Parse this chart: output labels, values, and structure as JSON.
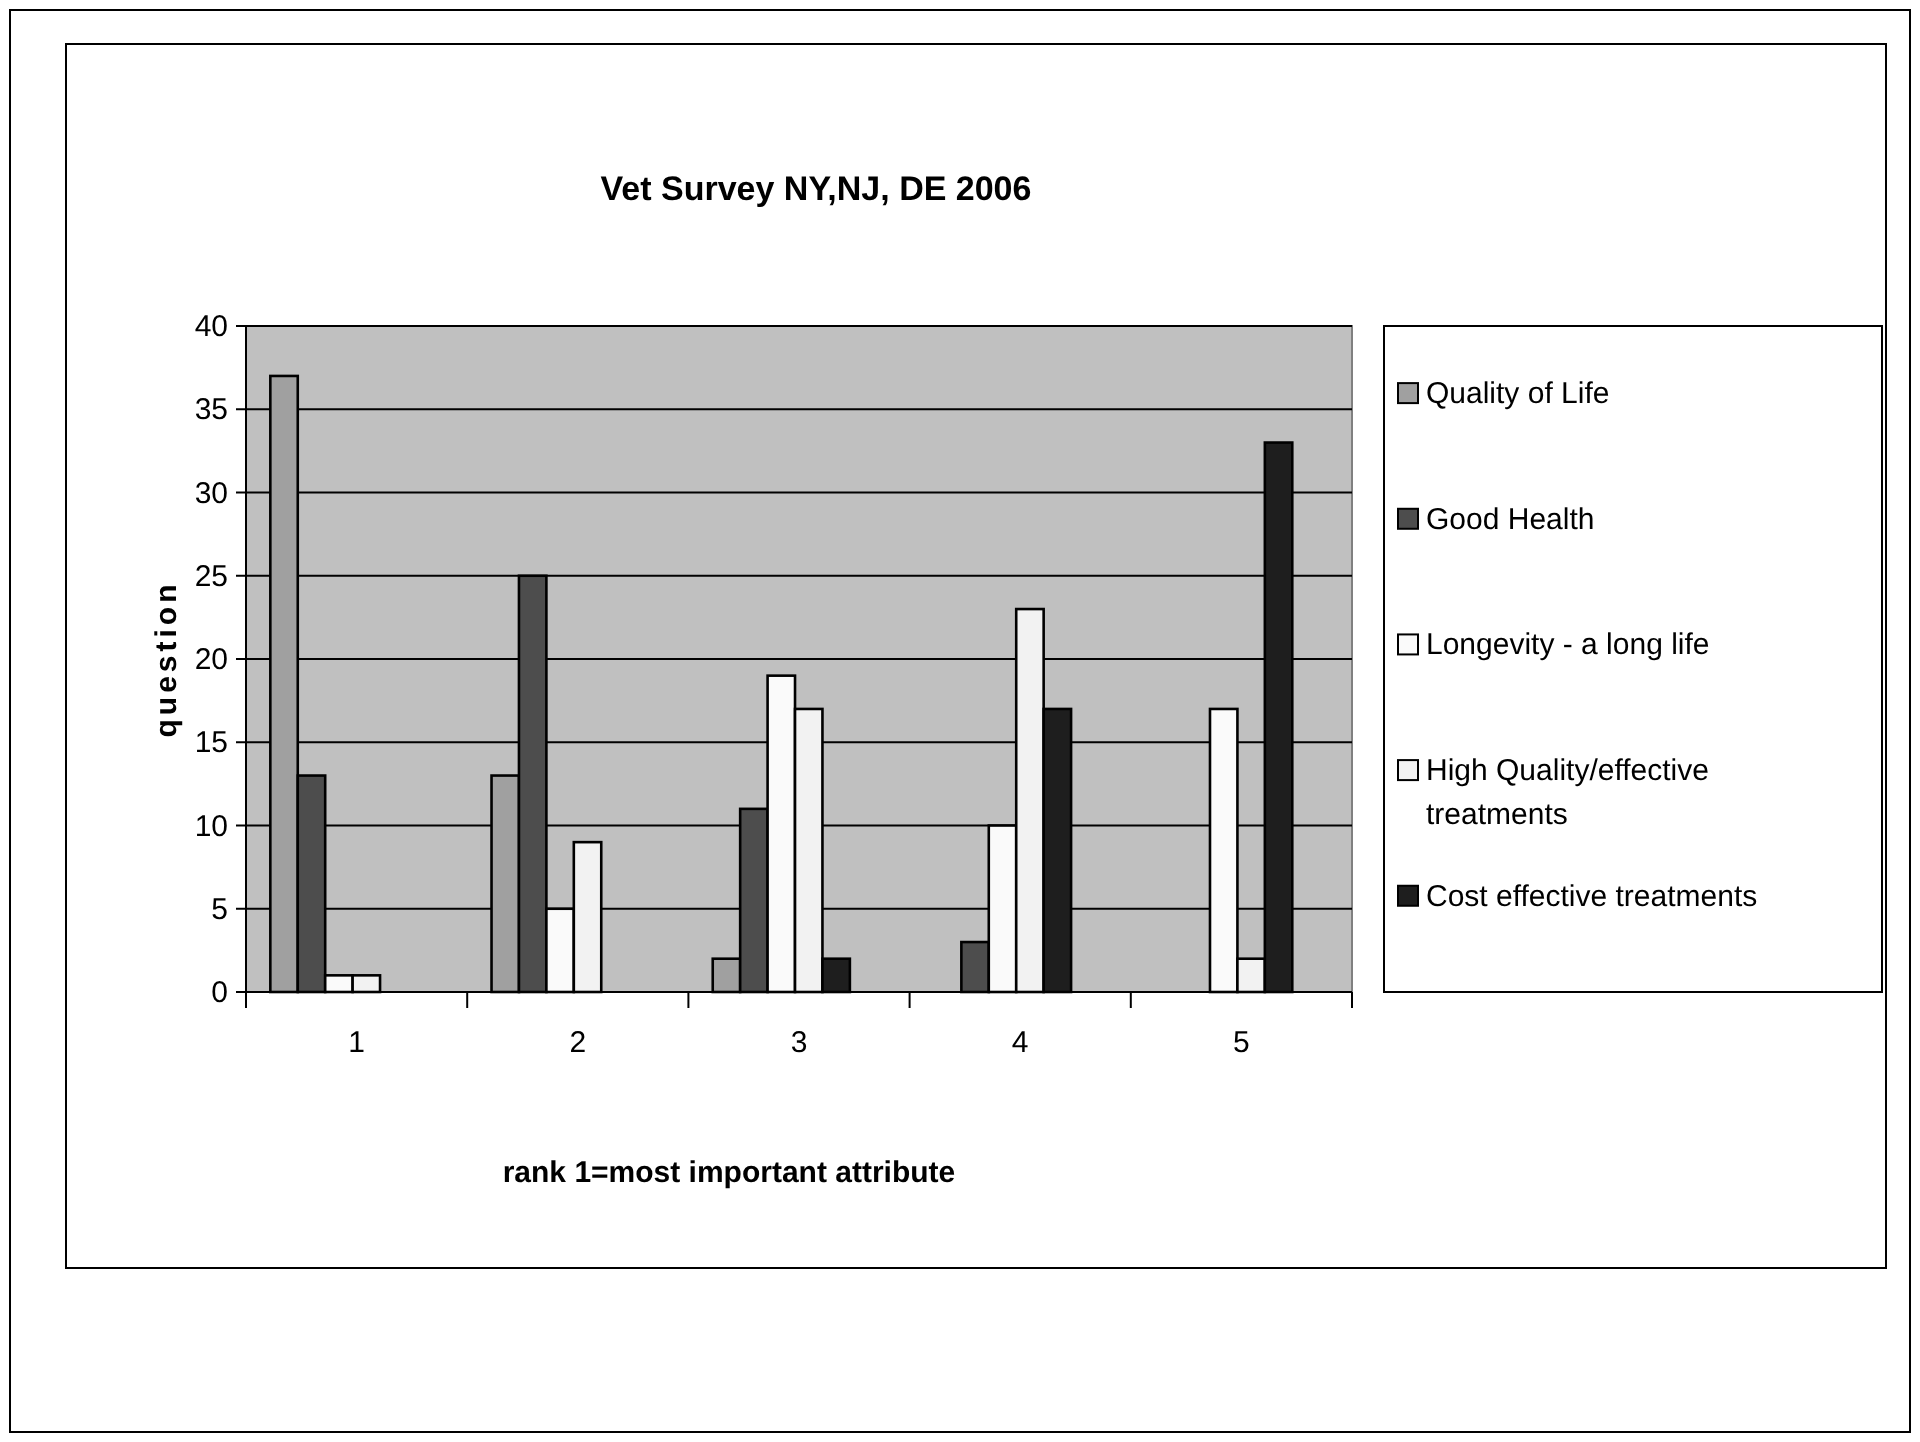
{
  "chart_data": {
    "type": "bar",
    "title": "Vet Survey NY,NJ, DE 2006",
    "xlabel": "rank 1=most important attribute",
    "ylabel": "question",
    "categories": [
      "1",
      "2",
      "3",
      "4",
      "5"
    ],
    "series": [
      {
        "name": "Quality of Life",
        "color": "#a0a0a0",
        "values": [
          37,
          13,
          2,
          0,
          0
        ]
      },
      {
        "name": "Good Health",
        "color": "#4d4d4d",
        "values": [
          13,
          25,
          11,
          3,
          0
        ]
      },
      {
        "name": "Longevity - a long life",
        "color": "#fafafa",
        "values": [
          1,
          5,
          19,
          10,
          17
        ]
      },
      {
        "name": "High Quality/effective treatments",
        "color": "#f2f2f2",
        "values": [
          1,
          9,
          17,
          23,
          2
        ]
      },
      {
        "name": "Cost effective treatments",
        "color": "#1e1e1e",
        "values": [
          0,
          0,
          2,
          17,
          33
        ]
      }
    ],
    "ylim": [
      0,
      40
    ],
    "yticks": [
      0,
      5,
      10,
      15,
      20,
      25,
      30,
      35,
      40
    ],
    "grid": "y",
    "legend": "right"
  }
}
